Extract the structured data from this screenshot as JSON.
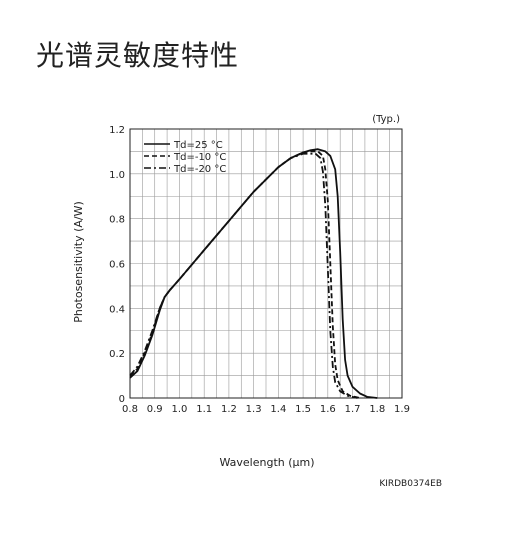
{
  "page": {
    "title": "光谱灵敏度特性"
  },
  "chart_data": {
    "type": "line",
    "title": "",
    "xlabel": "Wavelength (μm)",
    "ylabel": "Photosensitivity (A/W)",
    "annotation_top_right": "(Typ.)",
    "figure_code": "KIRDB0374EB",
    "xlim": [
      0.8,
      1.9
    ],
    "ylim": [
      0,
      1.2
    ],
    "xticks": [
      "0.8",
      "0.9",
      "1.0",
      "1.1",
      "1.2",
      "1.3",
      "1.4",
      "1.5",
      "1.6",
      "1.7",
      "1.8",
      "1.9"
    ],
    "yticks": [
      "0",
      "0.2",
      "0.4",
      "0.6",
      "0.8",
      "1.0",
      "1.2"
    ],
    "grid": true,
    "legend_position": "top-left",
    "series": [
      {
        "name": "Td=25 °C",
        "style": "solid",
        "x": [
          0.8,
          0.83,
          0.86,
          0.89,
          0.92,
          0.94,
          0.96,
          1.0,
          1.1,
          1.2,
          1.3,
          1.4,
          1.45,
          1.5,
          1.53,
          1.56,
          1.59,
          1.61,
          1.63,
          1.64,
          1.65,
          1.66,
          1.67,
          1.68,
          1.7,
          1.73,
          1.76,
          1.8
        ],
        "y": [
          0.09,
          0.12,
          0.19,
          0.28,
          0.39,
          0.45,
          0.48,
          0.53,
          0.66,
          0.79,
          0.92,
          1.03,
          1.07,
          1.095,
          1.105,
          1.11,
          1.1,
          1.08,
          1.02,
          0.9,
          0.65,
          0.35,
          0.17,
          0.1,
          0.05,
          0.02,
          0.005,
          0.0
        ]
      },
      {
        "name": "Td=-10 °C",
        "style": "dashed",
        "x": [
          0.8,
          0.83,
          0.86,
          0.89,
          0.92,
          0.94,
          0.96,
          1.0,
          1.1,
          1.2,
          1.3,
          1.4,
          1.45,
          1.5,
          1.53,
          1.56,
          1.58,
          1.59,
          1.6,
          1.61,
          1.62,
          1.63,
          1.64,
          1.66,
          1.69,
          1.73
        ],
        "y": [
          0.1,
          0.13,
          0.2,
          0.29,
          0.4,
          0.45,
          0.48,
          0.53,
          0.66,
          0.79,
          0.92,
          1.03,
          1.07,
          1.095,
          1.1,
          1.1,
          1.08,
          1.02,
          0.88,
          0.6,
          0.32,
          0.15,
          0.08,
          0.03,
          0.01,
          0.0
        ]
      },
      {
        "name": "Td=-20 °C",
        "style": "dashdot",
        "x": [
          0.8,
          0.83,
          0.86,
          0.89,
          0.92,
          0.94,
          0.96,
          1.0,
          1.1,
          1.2,
          1.3,
          1.4,
          1.45,
          1.5,
          1.53,
          1.55,
          1.57,
          1.58,
          1.59,
          1.6,
          1.61,
          1.62,
          1.63,
          1.65,
          1.68,
          1.72
        ],
        "y": [
          0.1,
          0.14,
          0.21,
          0.3,
          0.4,
          0.45,
          0.48,
          0.53,
          0.66,
          0.79,
          0.92,
          1.03,
          1.07,
          1.09,
          1.09,
          1.09,
          1.07,
          1.01,
          0.86,
          0.58,
          0.3,
          0.14,
          0.07,
          0.03,
          0.01,
          0.0
        ]
      }
    ]
  }
}
